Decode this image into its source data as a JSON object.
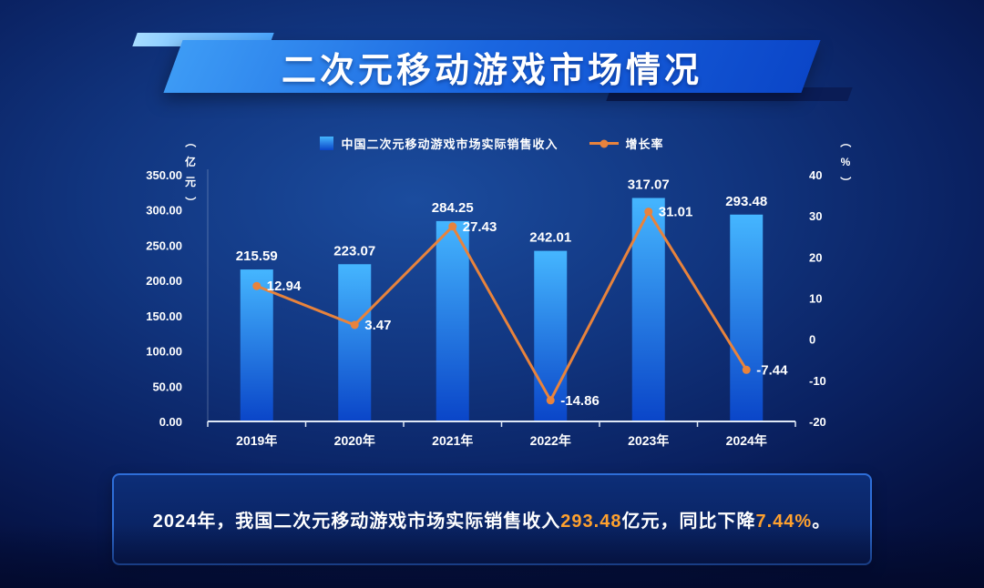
{
  "title": {
    "text": "二次元移动游戏市场情况"
  },
  "chart_data": {
    "type": "bar+line",
    "categories": [
      "2019年",
      "2020年",
      "2021年",
      "2022年",
      "2023年",
      "2024年"
    ],
    "series": [
      {
        "name": "中国二次元移动游戏市场实际销售收入",
        "type": "bar",
        "axis": "left",
        "values": [
          215.59,
          223.07,
          284.25,
          242.01,
          317.07,
          293.48
        ],
        "color_top": "#45b6ff",
        "color_bottom": "#0a45c8"
      },
      {
        "name": "增长率",
        "type": "line",
        "axis": "right",
        "values": [
          12.94,
          3.47,
          27.43,
          -14.86,
          31.01,
          -7.44
        ],
        "color": "#e8833c"
      }
    ],
    "left_axis": {
      "unit": "（亿元）",
      "min": 0,
      "max": 350,
      "step": 50,
      "decimals": 2
    },
    "right_axis": {
      "unit": "（%）",
      "min": -20,
      "max": 40,
      "step": 10,
      "decimals": 0
    },
    "legend_position": "top",
    "grid": false
  },
  "summary": {
    "segments": [
      {
        "text": "2024年，我国二次元移动游戏市场实际销售收入",
        "highlight": false
      },
      {
        "text": "293.48",
        "highlight": true
      },
      {
        "text": "亿元，同比下降",
        "highlight": false
      },
      {
        "text": "7.44%",
        "highlight": true
      },
      {
        "text": "。",
        "highlight": false
      }
    ]
  },
  "colors": {
    "highlight": "#ffa12e",
    "line": "#e8833c",
    "bar_top": "#45b6ff",
    "bar_bottom": "#0a45c8",
    "axis": "#dfe8f5",
    "banner_blue": "#1a66e0",
    "panel_border": "#2e6ed8"
  }
}
